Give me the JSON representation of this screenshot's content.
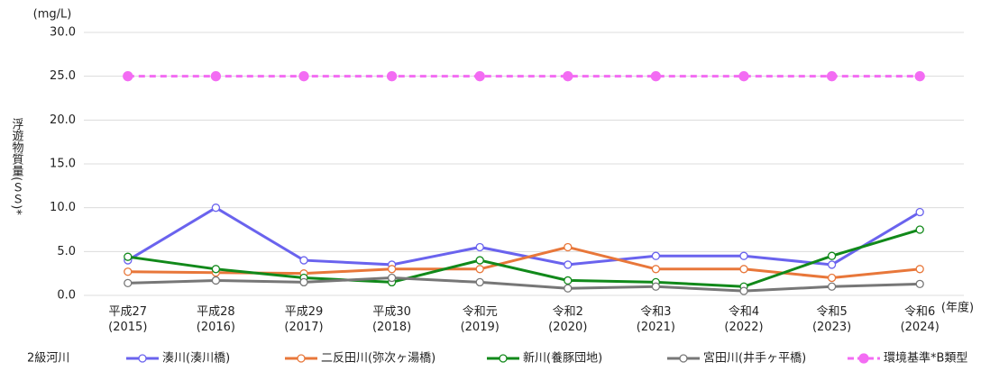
{
  "chart_data": {
    "type": "line",
    "unit_label": "(mg/L)",
    "y_axis_label": "浮遊物質量(ＳＳ)*",
    "x_axis_label": "(年度)",
    "legend_title": "2級河川",
    "categories": [
      "平成27\n(2015)",
      "平成28\n(2016)",
      "平成29\n(2017)",
      "平成30\n(2018)",
      "令和元\n(2019)",
      "令和2\n(2020)",
      "令和3\n(2021)",
      "令和4\n(2022)",
      "令和5\n(2023)",
      "令和6\n(2024)"
    ],
    "series": [
      {
        "name": "湊川(湊川橋)",
        "color": "#6a63ee",
        "values": [
          4.0,
          10.0,
          4.0,
          3.5,
          5.5,
          3.5,
          4.5,
          4.5,
          3.5,
          9.5
        ]
      },
      {
        "name": "二反田川(弥次ヶ湯橋)",
        "color": "#e8773a",
        "values": [
          2.7,
          2.6,
          2.5,
          3.0,
          3.0,
          5.5,
          3.0,
          3.0,
          2.0,
          3.0
        ]
      },
      {
        "name": "新川(養豚団地)",
        "color": "#11891a",
        "values": [
          4.4,
          3.0,
          2.0,
          1.5,
          4.0,
          1.7,
          1.5,
          1.0,
          4.5,
          7.5
        ]
      },
      {
        "name": "宮田川(井手ヶ平橋)",
        "color": "#777777",
        "values": [
          1.4,
          1.7,
          1.5,
          2.0,
          1.5,
          0.8,
          1.0,
          0.5,
          1.0,
          1.3
        ]
      },
      {
        "name": "環境基準*B類型",
        "color": "#f36cf3",
        "dashed": true,
        "values": [
          25,
          25,
          25,
          25,
          25,
          25,
          25,
          25,
          25,
          25
        ]
      }
    ],
    "ylim": [
      0,
      30
    ],
    "yticks": [
      {
        "value": 0,
        "label": "0.0"
      },
      {
        "value": 5,
        "label": "5.0"
      },
      {
        "value": 10,
        "label": "10.0"
      },
      {
        "value": 15,
        "label": "15.0"
      },
      {
        "value": 20,
        "label": "20.0"
      },
      {
        "value": 25,
        "label": "25.0"
      },
      {
        "value": 30,
        "label": "30.0"
      }
    ],
    "grid": true
  }
}
